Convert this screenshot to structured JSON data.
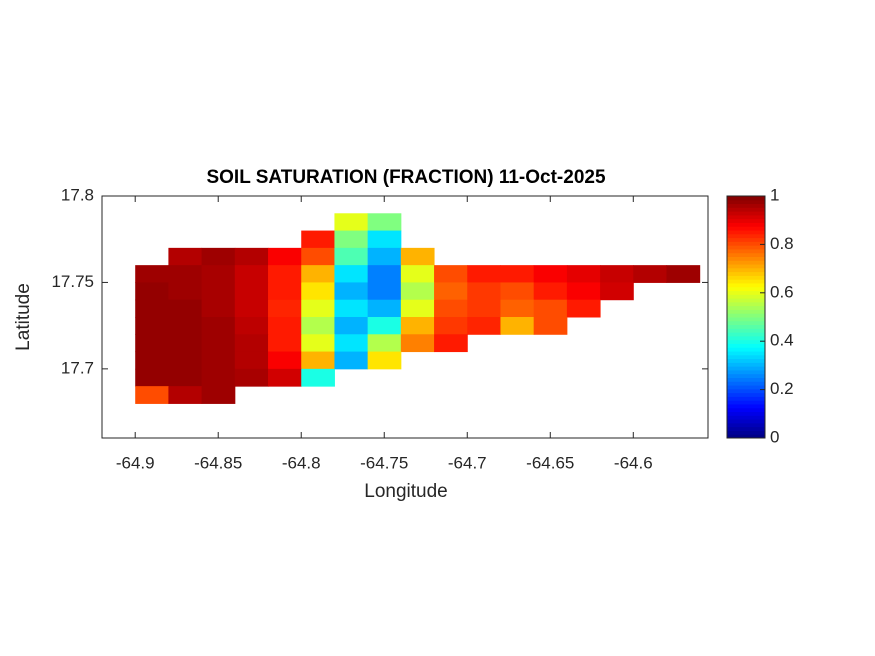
{
  "chart_data": {
    "type": "heatmap",
    "title": "SOIL SATURATION (FRACTION) 11-Oct-2025",
    "xlabel": "Longitude",
    "ylabel": "Latitude",
    "xlim": [
      -64.92,
      -64.555
    ],
    "ylim": [
      17.66,
      17.8
    ],
    "xticks": [
      -64.9,
      -64.85,
      -64.8,
      -64.75,
      -64.7,
      -64.65,
      -64.6
    ],
    "yticks": [
      17.7,
      17.75,
      17.8
    ],
    "colormap": "jet",
    "clim": [
      0,
      1
    ],
    "colorbar_ticks": [
      0,
      0.2,
      0.4,
      0.6,
      0.8,
      1
    ],
    "lon": [
      -64.89,
      -64.87,
      -64.85,
      -64.83,
      -64.81,
      -64.79,
      -64.77,
      -64.75,
      -64.73,
      -64.71,
      -64.69,
      -64.67,
      -64.65,
      -64.63,
      -64.61,
      -64.59,
      -64.57
    ],
    "lat": [
      17.785,
      17.775,
      17.765,
      17.755,
      17.745,
      17.735,
      17.725,
      17.715,
      17.705,
      17.695,
      17.685
    ],
    "values": [
      [
        null,
        null,
        null,
        null,
        null,
        null,
        0.6,
        0.5,
        null,
        null,
        null,
        null,
        null,
        null,
        null,
        null,
        null
      ],
      [
        null,
        null,
        null,
        null,
        null,
        0.85,
        0.5,
        0.35,
        null,
        null,
        null,
        null,
        null,
        null,
        null,
        null,
        null
      ],
      [
        null,
        0.95,
        0.97,
        0.95,
        0.88,
        0.8,
        0.45,
        0.3,
        0.7,
        null,
        null,
        null,
        null,
        null,
        null,
        null,
        null
      ],
      [
        0.97,
        0.97,
        0.96,
        0.93,
        0.85,
        0.7,
        0.35,
        0.25,
        0.6,
        0.8,
        0.85,
        0.85,
        0.88,
        0.9,
        0.93,
        0.95,
        0.97
      ],
      [
        0.98,
        0.97,
        0.96,
        0.93,
        0.85,
        0.65,
        0.3,
        0.25,
        0.55,
        0.78,
        0.82,
        0.8,
        0.85,
        0.88,
        0.92,
        null,
        null
      ],
      [
        0.98,
        0.98,
        0.96,
        0.93,
        0.84,
        0.6,
        0.35,
        0.3,
        0.6,
        0.8,
        0.82,
        0.78,
        0.8,
        0.85,
        null,
        null,
        null
      ],
      [
        0.98,
        0.98,
        0.97,
        0.94,
        0.85,
        0.55,
        0.3,
        0.4,
        0.7,
        0.82,
        0.84,
        0.7,
        0.8,
        null,
        null,
        null,
        null
      ],
      [
        0.98,
        0.98,
        0.97,
        0.95,
        0.85,
        0.6,
        0.35,
        0.55,
        0.75,
        0.85,
        null,
        null,
        null,
        null,
        null,
        null,
        null
      ],
      [
        0.98,
        0.98,
        0.97,
        0.95,
        0.88,
        0.7,
        0.3,
        0.65,
        null,
        null,
        null,
        null,
        null,
        null,
        null,
        null,
        null
      ],
      [
        0.98,
        0.98,
        0.97,
        0.96,
        0.92,
        0.4,
        null,
        null,
        null,
        null,
        null,
        null,
        null,
        null,
        null,
        null,
        null
      ],
      [
        0.8,
        0.95,
        0.97,
        null,
        null,
        null,
        null,
        null,
        null,
        null,
        null,
        null,
        null,
        null,
        null,
        null,
        null
      ]
    ]
  }
}
